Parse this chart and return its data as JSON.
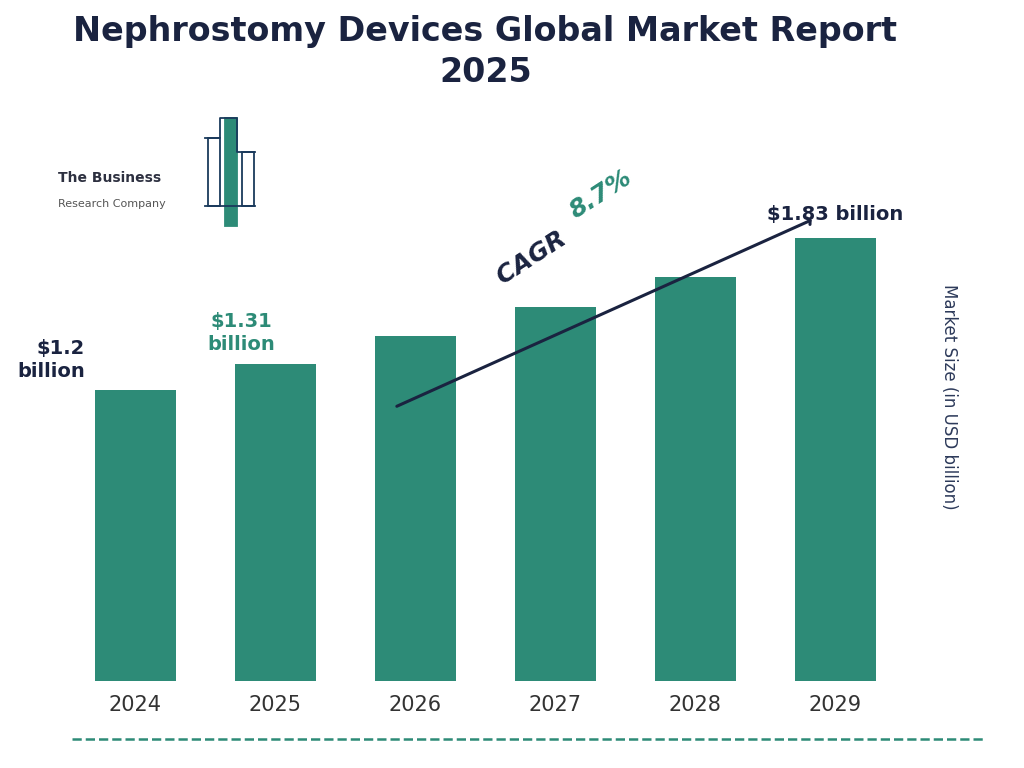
{
  "title": "Nephrostomy Devices Global Market Report\n2025",
  "years": [
    "2024",
    "2025",
    "2026",
    "2027",
    "2028",
    "2029"
  ],
  "values": [
    1.2,
    1.31,
    1.425,
    1.545,
    1.67,
    1.83
  ],
  "bar_color": "#2d8b77",
  "background_color": "#ffffff",
  "title_color": "#1a2340",
  "ylabel": "Market Size (in USD billion)",
  "ylabel_color": "#2d3a5a",
  "cagr_text_dark": "CAGR ",
  "cagr_text_green": "8.7%",
  "cagr_dark_color": "#1a2340",
  "cagr_green_color": "#2d8b77",
  "bottom_line_color": "#2d8b77",
  "tick_label_fontsize": 15,
  "title_fontsize": 24,
  "ylim": [
    0,
    2.35
  ],
  "label_24_text": "$1.2\nbillion",
  "label_24_color": "#1a2340",
  "label_25_text": "$1.31\nbillion",
  "label_25_color": "#2d8b77",
  "label_29_text": "$1.83 billion",
  "label_29_color": "#1a2340"
}
